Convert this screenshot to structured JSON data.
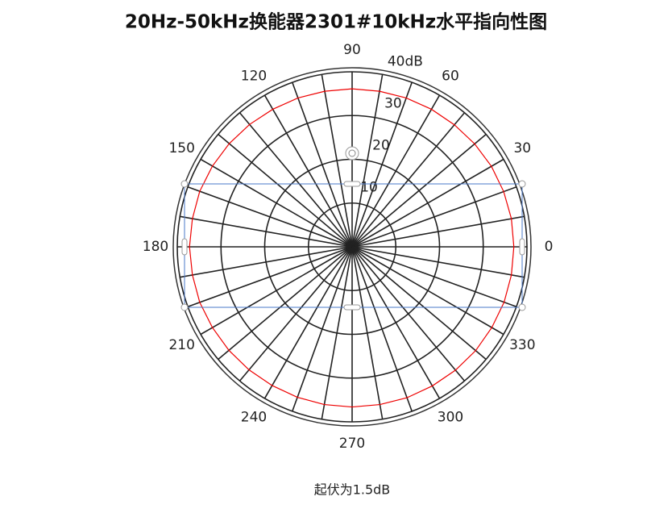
{
  "chart_data": {
    "type": "polar",
    "title": "20Hz-50kHz换能器2301#10kHz水平指向性图",
    "footer": "起伏为1.5dB",
    "theta": [
      0,
      10,
      20,
      30,
      40,
      50,
      60,
      70,
      80,
      90,
      100,
      110,
      120,
      130,
      140,
      150,
      160,
      170,
      180,
      190,
      200,
      210,
      220,
      230,
      240,
      250,
      260,
      270,
      280,
      290,
      300,
      310,
      320,
      330,
      340,
      350
    ],
    "r": [
      37.0,
      37.0,
      36.9,
      36.8,
      36.6,
      36.4,
      36.3,
      36.2,
      36.1,
      36.1,
      36.1,
      36.2,
      36.3,
      36.5,
      36.7,
      36.9,
      37.1,
      37.1,
      37.2,
      37.1,
      37.1,
      36.9,
      36.8,
      36.7,
      36.6,
      36.6,
      36.6,
      36.6,
      36.6,
      36.7,
      36.7,
      36.8,
      36.9,
      36.9,
      37.0,
      37.0
    ],
    "color": "#ee0000",
    "rlim": [
      0,
      40
    ],
    "rticks": [
      10,
      20,
      30,
      {
        "value": 40,
        "label": "40dB"
      }
    ],
    "thetaticks": [
      0,
      30,
      60,
      90,
      120,
      150,
      180,
      210,
      240,
      270,
      300,
      330
    ],
    "angular_grid_step": 10
  }
}
